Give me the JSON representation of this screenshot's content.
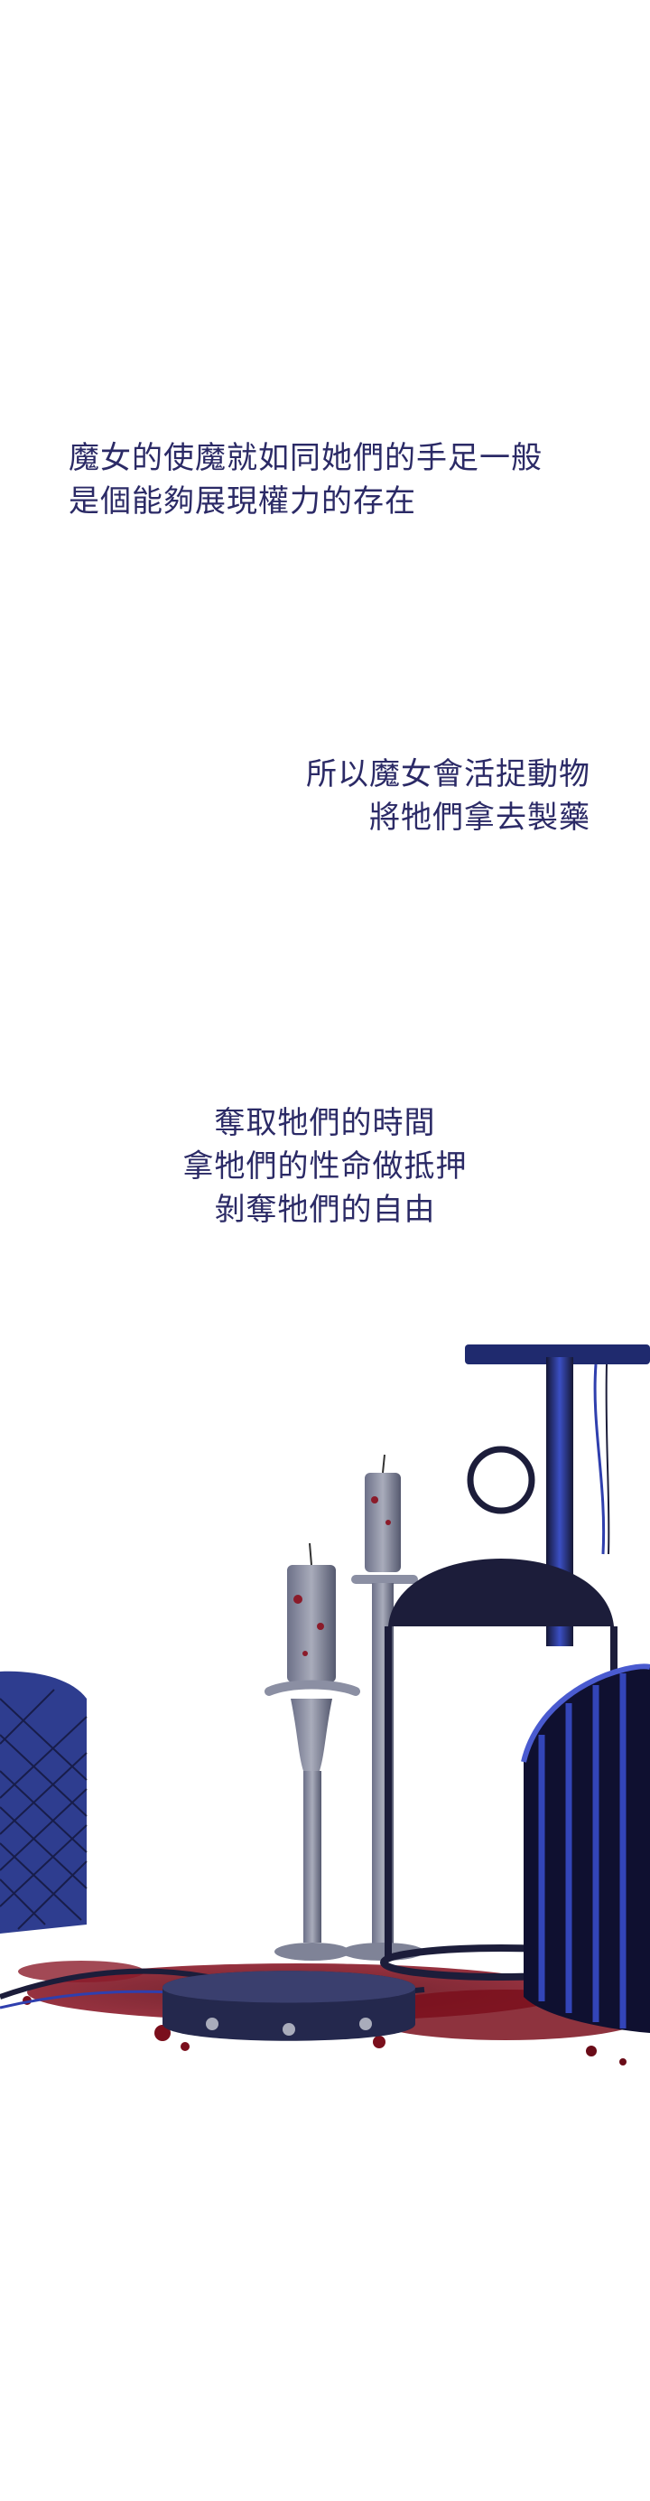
{
  "captions": [
    {
      "lines": [
        "魔女的使魔就如同她們的手足一般",
        "是個能夠展現權力的存在"
      ],
      "align": "left"
    },
    {
      "lines": [
        "所以魔女會活捉動物",
        "將牠們拿去製藥"
      ],
      "align": "right"
    },
    {
      "lines": [
        "奪取牠們的時間",
        "拿牠們的性命做抵押",
        "剝奪牠們的自由"
      ],
      "align": "center"
    }
  ],
  "illustration": {
    "description_icons": [
      "gallows-icon",
      "birdcage-icon",
      "candle-icon",
      "collar-icon",
      "blood-splatter-icon"
    ],
    "colors": {
      "ink": "#1c1d3a",
      "blue": "#2f3fae",
      "blood": "#7a0f1c",
      "text": "#2b2a66"
    }
  }
}
